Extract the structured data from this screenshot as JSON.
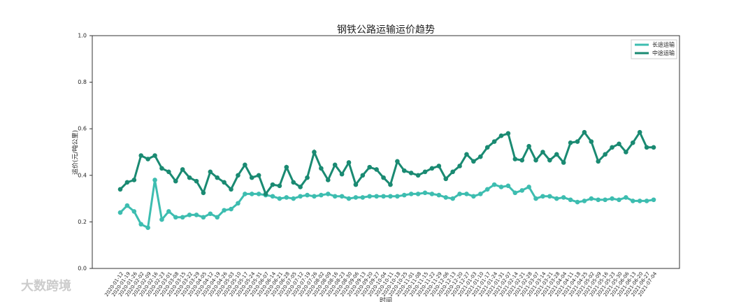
{
  "chart_data": {
    "type": "line",
    "title": "钢铁公路运输运价趋势",
    "x_label": "时间",
    "y_label": "运价(元/吨公里)",
    "watermark": "大数跨境",
    "categories": [
      "2020-01-12",
      "2020-01-19",
      "2020-01-26",
      "2020-02-02",
      "2020-02-09",
      "2020-02-16",
      "2020-02-23",
      "2020-03-01",
      "2020-03-08",
      "2020-03-15",
      "2020-03-22",
      "2020-03-29",
      "2020-04-05",
      "2020-04-12",
      "2020-04-19",
      "2020-04-26",
      "2020-05-03",
      "2020-05-10",
      "2020-05-17",
      "2020-05-24",
      "2020-05-31",
      "2020-06-07",
      "2020-06-14",
      "2020-06-21",
      "2020-06-28",
      "2020-07-05",
      "2020-07-12",
      "2020-07-19",
      "2020-07-26",
      "2020-08-02",
      "2020-08-09",
      "2020-08-16",
      "2020-08-23",
      "2020-08-30",
      "2020-09-06",
      "2020-09-13",
      "2020-09-20",
      "2020-09-27",
      "2020-10-04",
      "2020-10-11",
      "2020-10-18",
      "2020-10-25",
      "2020-11-01",
      "2020-11-08",
      "2020-11-15",
      "2020-11-22",
      "2020-11-29",
      "2020-12-06",
      "2020-12-13",
      "2020-12-20",
      "2020-12-27",
      "2021-01-03",
      "2021-01-10",
      "2021-01-17",
      "2021-01-24",
      "2021-01-31",
      "2021-02-07",
      "2021-02-14",
      "2021-02-21",
      "2021-02-28",
      "2021-03-07",
      "2021-03-14",
      "2021-03-21",
      "2021-03-28",
      "2021-04-04",
      "2021-04-11",
      "2021-04-18",
      "2021-04-25",
      "2021-05-02",
      "2021-05-09",
      "2021-05-16",
      "2021-05-23",
      "2021-05-30",
      "2021-06-06",
      "2021-06-13",
      "2021-06-20",
      "2021-06-27",
      "2021-07-04"
    ],
    "series": [
      {
        "name": "长途运输",
        "color": "#3dbdb0",
        "values": [
          0.24,
          0.27,
          0.245,
          0.19,
          0.175,
          0.38,
          0.21,
          0.245,
          0.22,
          0.22,
          0.23,
          0.23,
          0.22,
          0.235,
          0.22,
          0.25,
          0.255,
          0.28,
          0.32,
          0.32,
          0.32,
          0.315,
          0.31,
          0.3,
          0.305,
          0.3,
          0.31,
          0.315,
          0.31,
          0.315,
          0.32,
          0.31,
          0.31,
          0.3,
          0.305,
          0.305,
          0.31,
          0.31,
          0.31,
          0.31,
          0.31,
          0.315,
          0.32,
          0.32,
          0.325,
          0.32,
          0.315,
          0.305,
          0.3,
          0.32,
          0.32,
          0.31,
          0.32,
          0.34,
          0.36,
          0.35,
          0.355,
          0.325,
          0.335,
          0.35,
          0.3,
          0.31,
          0.31,
          0.3,
          0.305,
          0.295,
          0.285,
          0.29,
          0.3,
          0.295,
          0.295,
          0.3,
          0.295,
          0.305,
          0.29,
          0.29,
          0.29,
          0.295
        ]
      },
      {
        "name": "中途运输",
        "color": "#1a8a72",
        "values": [
          0.34,
          0.37,
          0.38,
          0.485,
          0.47,
          0.485,
          0.43,
          0.415,
          0.375,
          0.425,
          0.39,
          0.375,
          0.325,
          0.415,
          0.39,
          0.37,
          0.34,
          0.4,
          0.445,
          0.39,
          0.4,
          0.32,
          0.36,
          0.355,
          0.435,
          0.37,
          0.35,
          0.39,
          0.5,
          0.43,
          0.38,
          0.445,
          0.405,
          0.455,
          0.36,
          0.4,
          0.435,
          0.425,
          0.39,
          0.36,
          0.46,
          0.42,
          0.41,
          0.4,
          0.415,
          0.43,
          0.44,
          0.385,
          0.415,
          0.44,
          0.49,
          0.46,
          0.48,
          0.52,
          0.545,
          0.57,
          0.58,
          0.47,
          0.465,
          0.525,
          0.465,
          0.5,
          0.465,
          0.49,
          0.455,
          0.54,
          0.545,
          0.585,
          0.545,
          0.46,
          0.49,
          0.52,
          0.535,
          0.5,
          0.54,
          0.585,
          0.52,
          0.52
        ]
      }
    ],
    "ylim": [
      0,
      1
    ],
    "yticks": [
      {
        "value": 0,
        "label": "0.0"
      },
      0.2,
      0.4,
      0.6,
      0.8,
      {
        "value": 1,
        "label": "1.0"
      }
    ],
    "grid": false,
    "legend": "upper right"
  }
}
